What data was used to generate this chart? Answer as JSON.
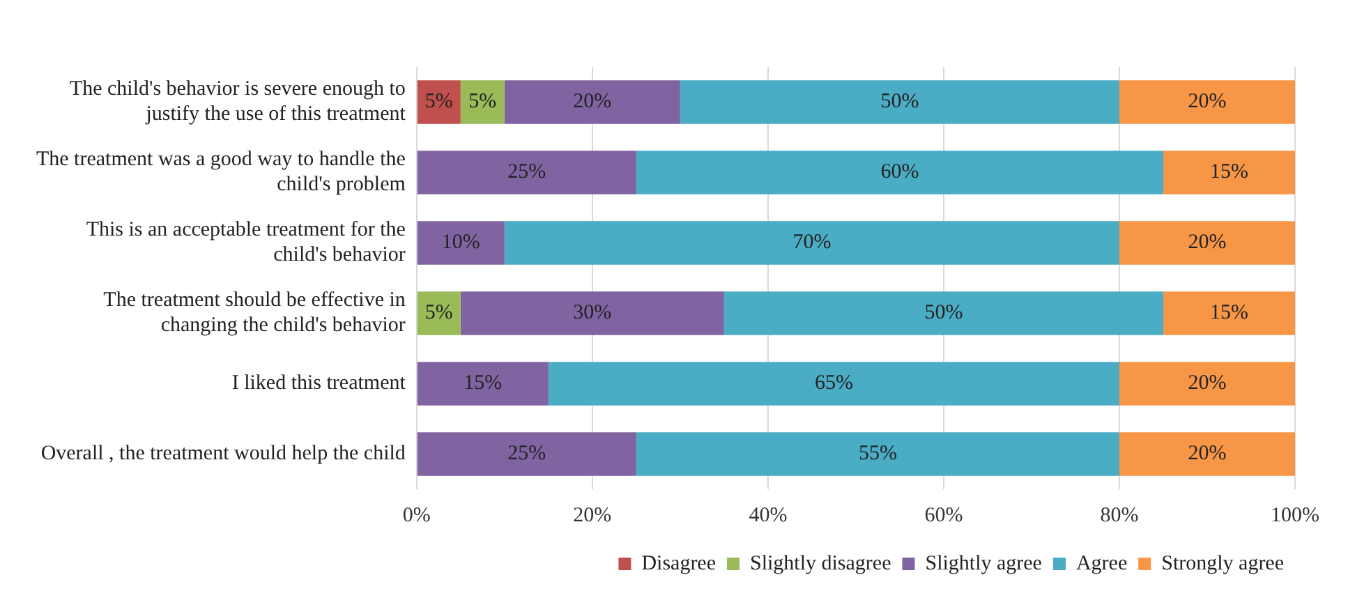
{
  "chart_data": {
    "type": "bar",
    "orientation": "horizontal",
    "stacked": true,
    "categories": [
      "The child's behavior is severe enough to justify the use of this treatment",
      "The treatment was a good way to handle the child's problem",
      "This is an acceptable treatment for the child's behavior",
      "The treatment should be effective in changing the child's behavior",
      "I liked this treatment",
      "Overall , the treatment would help the child"
    ],
    "series": [
      {
        "name": "Disagree",
        "color": "#c0504d",
        "values": [
          5,
          null,
          null,
          null,
          null,
          null
        ],
        "value_labels": [
          "5%",
          null,
          null,
          null,
          null,
          null
        ]
      },
      {
        "name": "Slightly disagree",
        "color": "#9bbb59",
        "values": [
          5,
          null,
          null,
          5,
          null,
          null
        ],
        "value_labels": [
          "5%",
          null,
          null,
          "5%",
          null,
          null
        ]
      },
      {
        "name": "Slightly agree",
        "color": "#8064a2",
        "values": [
          20,
          25,
          10,
          30,
          15,
          25
        ],
        "value_labels": [
          "20%",
          "25%",
          "10%",
          "30%",
          "15%",
          "25%"
        ]
      },
      {
        "name": "Agree",
        "color": "#4bacc6",
        "values": [
          50,
          60,
          70,
          50,
          65,
          55
        ],
        "value_labels": [
          "50%",
          "60%",
          "70%",
          "50%",
          "65%",
          "55%"
        ]
      },
      {
        "name": "Strongly agree",
        "color": "#f79646",
        "values": [
          20,
          15,
          20,
          15,
          20,
          20
        ],
        "value_labels": [
          "20%",
          "15%",
          "20%",
          "15%",
          "20%",
          "20%"
        ]
      }
    ],
    "xlim": [
      0,
      100
    ],
    "xticks": [
      {
        "value": 0,
        "label": "0%"
      },
      {
        "value": 20,
        "label": "20%"
      },
      {
        "value": 40,
        "label": "40%"
      },
      {
        "value": 60,
        "label": "60%"
      },
      {
        "value": 80,
        "label": "80%"
      },
      {
        "value": 100,
        "label": "100%"
      }
    ],
    "grid": "x",
    "legend": "bottom"
  }
}
